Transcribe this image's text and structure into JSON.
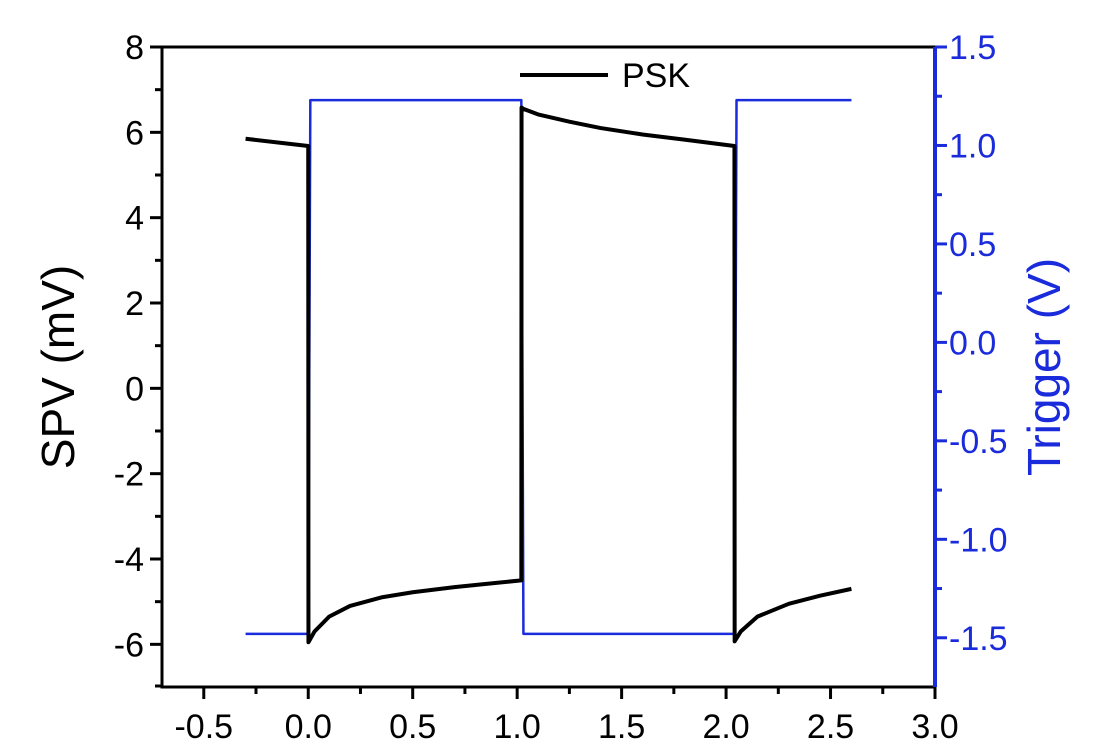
{
  "chart_data": {
    "type": "line",
    "title": "",
    "xlabel": "",
    "ylabel_left": "SPV (mV)",
    "ylabel_right": "Trigger (V)",
    "xlim": [
      -0.7,
      3.0
    ],
    "ylim_left": [
      -7,
      8
    ],
    "ylim_right": [
      -1.75,
      1.5
    ],
    "x_ticks": [
      "-0.5",
      "0.0",
      "0.5",
      "1.0",
      "1.5",
      "2.0",
      "2.5",
      "3.0"
    ],
    "x_tick_values": [
      -0.5,
      0.0,
      0.5,
      1.0,
      1.5,
      2.0,
      2.5,
      3.0
    ],
    "y_left_ticks": [
      "-6",
      "-4",
      "-2",
      "0",
      "2",
      "4",
      "6",
      "8"
    ],
    "y_left_tick_values": [
      -6,
      -4,
      -2,
      0,
      2,
      4,
      6,
      8
    ],
    "y_right_ticks": [
      "-1.5",
      "-1.0",
      "-0.5",
      "0.0",
      "0.5",
      "1.0",
      "1.5"
    ],
    "y_right_tick_values": [
      -1.5,
      -1.0,
      -0.5,
      0.0,
      0.5,
      1.0,
      1.5
    ],
    "grid": false,
    "legend": {
      "position": "top-center"
    },
    "series": [
      {
        "name": "PSK",
        "axis": "left",
        "color": "#000000",
        "x": [
          -0.3,
          0.0,
          0.001,
          0.03,
          0.1,
          0.2,
          0.35,
          0.5,
          0.7,
          0.9,
          1.02,
          1.021,
          1.03,
          1.1,
          1.25,
          1.4,
          1.6,
          1.8,
          2.04,
          2.041,
          2.07,
          2.15,
          2.3,
          2.45,
          2.6
        ],
        "y": [
          5.85,
          5.68,
          -5.95,
          -5.7,
          -5.35,
          -5.1,
          -4.9,
          -4.78,
          -4.66,
          -4.56,
          -4.5,
          6.58,
          6.55,
          6.42,
          6.25,
          6.1,
          5.95,
          5.83,
          5.68,
          -5.93,
          -5.7,
          -5.35,
          -5.05,
          -4.86,
          -4.7
        ]
      },
      {
        "name": "",
        "axis": "right",
        "color": "#1a2bdc",
        "x": [
          -0.3,
          0.0,
          0.01,
          1.02,
          1.03,
          2.04,
          2.05,
          2.6
        ],
        "y": [
          -1.48,
          -1.48,
          1.23,
          1.23,
          -1.48,
          -1.48,
          1.23,
          1.23
        ]
      }
    ]
  }
}
